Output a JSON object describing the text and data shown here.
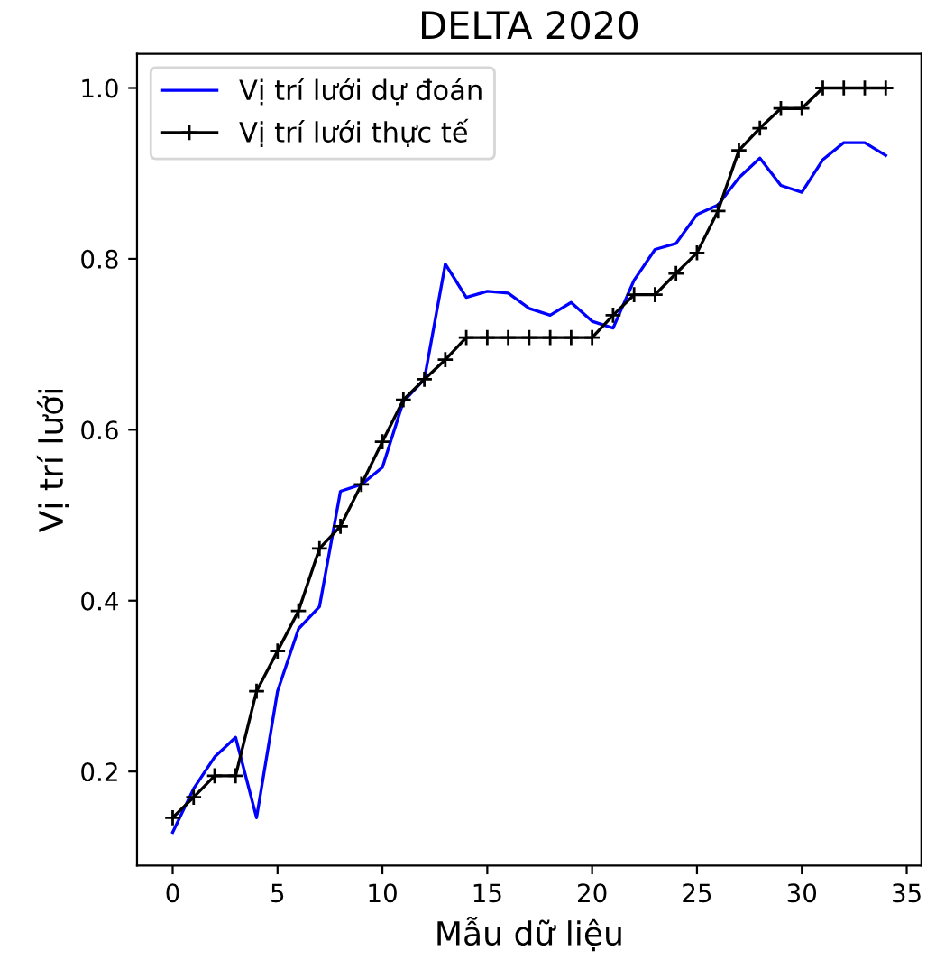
{
  "chart_data": {
    "type": "line",
    "title": "DELTA 2020",
    "xlabel": "Mẫu dữ liệu",
    "ylabel": "Vị trí lưới",
    "x": [
      0,
      1,
      2,
      3,
      4,
      5,
      6,
      7,
      8,
      9,
      10,
      11,
      12,
      13,
      14,
      15,
      16,
      17,
      18,
      19,
      20,
      21,
      22,
      23,
      24,
      25,
      26,
      27,
      28,
      29,
      30,
      31,
      32,
      33,
      34
    ],
    "series": [
      {
        "name": "Vị trí lưới dự đoán",
        "color": "#0000ff",
        "marker": "none",
        "values": [
          0.129,
          0.18,
          0.217,
          0.24,
          0.146,
          0.294,
          0.367,
          0.393,
          0.528,
          0.536,
          0.556,
          0.633,
          0.659,
          0.794,
          0.755,
          0.762,
          0.76,
          0.742,
          0.734,
          0.749,
          0.727,
          0.719,
          0.775,
          0.811,
          0.818,
          0.852,
          0.863,
          0.895,
          0.918,
          0.886,
          0.878,
          0.916,
          0.936,
          0.936,
          0.921
        ]
      },
      {
        "name": "Vị trí lưới thực tế",
        "color": "#000000",
        "marker": "cross",
        "values": [
          0.146,
          0.17,
          0.195,
          0.195,
          0.294,
          0.341,
          0.388,
          0.461,
          0.487,
          0.536,
          0.586,
          0.635,
          0.659,
          0.682,
          0.708,
          0.708,
          0.708,
          0.708,
          0.708,
          0.708,
          0.708,
          0.734,
          0.758,
          0.758,
          0.783,
          0.807,
          0.856,
          0.927,
          0.953,
          0.976,
          0.976,
          1.0,
          1.0,
          1.0,
          1.0
        ]
      }
    ],
    "xlim": [
      -1.7,
      35.7
    ],
    "ylim": [
      0.09,
      1.04
    ],
    "xticks": [
      0,
      5,
      10,
      15,
      20,
      25,
      30,
      35
    ],
    "yticks": [
      0.2,
      0.4,
      0.6,
      0.8,
      {
        "value": 1.0,
        "label": "1.0"
      }
    ],
    "legend": "top left",
    "grid": false
  }
}
